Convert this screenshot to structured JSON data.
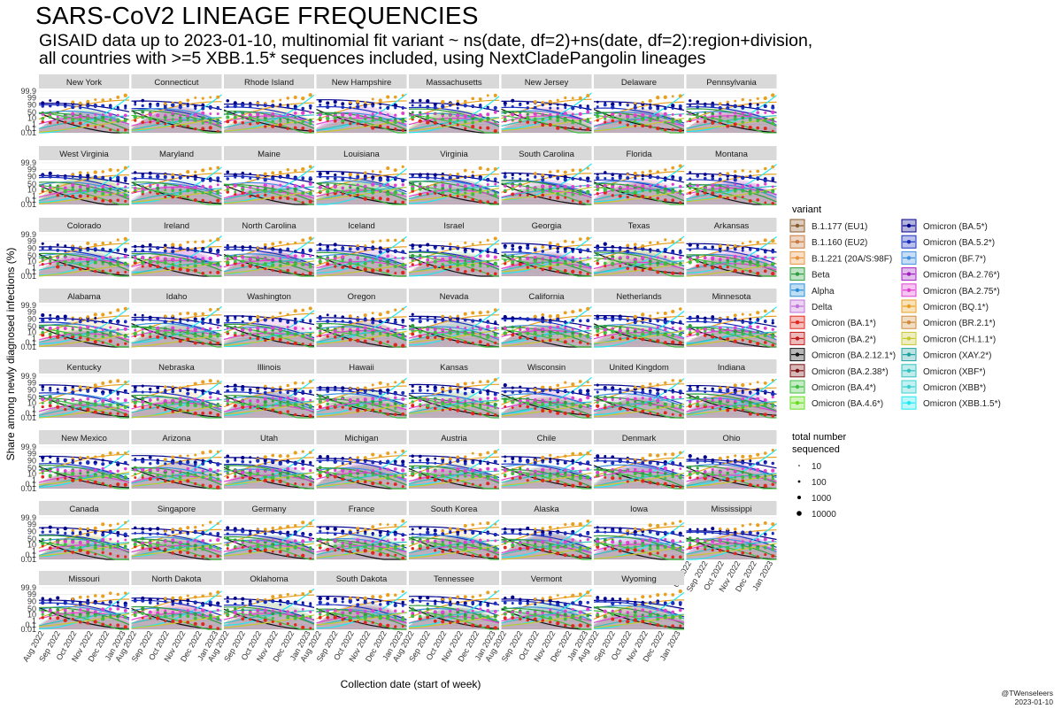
{
  "title": "SARS-CoV2 LINEAGE FREQUENCIES",
  "subtitle_line1": "GISAID data up to 2023-01-10, multinomial fit variant ~ ns(date, df=2)+ns(date, df=2):region+division,",
  "subtitle_line2": "all countries with >=5 XBB.1.5* sequences included, using NextCladePangolin lineages",
  "credit_handle": "@TWenseleers",
  "credit_date": "2023-01-10",
  "chart_data": {
    "type": "line",
    "ylabel": "Share among newly diagnosed infections (%)",
    "xlabel": "Collection date (start of week)",
    "y_scale": "logit",
    "y_ticks": [
      "0.01",
      "0.1",
      "1",
      "10",
      "50",
      "90",
      "99",
      "99.9"
    ],
    "x_ticks": [
      "Aug 2022",
      "Sep 2022",
      "Oct 2022",
      "Nov 2022",
      "Dec 2022",
      "Jan 2023"
    ],
    "panels": [
      "New York",
      "Connecticut",
      "Rhode Island",
      "New Hampshire",
      "Massachusetts",
      "New Jersey",
      "Delaware",
      "Pennsylvania",
      "West Virginia",
      "Maryland",
      "Maine",
      "Louisiana",
      "Virginia",
      "South Carolina",
      "Florida",
      "Montana",
      "Colorado",
      "Ireland",
      "North Carolina",
      "Iceland",
      "Israel",
      "Georgia",
      "Texas",
      "Arkansas",
      "Alabama",
      "Idaho",
      "Washington",
      "Oregon",
      "Nevada",
      "California",
      "Netherlands",
      "Minnesota",
      "Kentucky",
      "Nebraska",
      "Illinois",
      "Hawaii",
      "Kansas",
      "Wisconsin",
      "United Kingdom",
      "Indiana",
      "New Mexico",
      "Arizona",
      "Utah",
      "Michigan",
      "Austria",
      "Chile",
      "Denmark",
      "Ohio",
      "Canada",
      "Singapore",
      "Germany",
      "France",
      "South Korea",
      "Alaska",
      "Iowa",
      "Mississippi",
      "Missouri",
      "North Dakota",
      "Oklahoma",
      "South Dakota",
      "Tennessee",
      "Vermont",
      "Wyoming"
    ],
    "legend_title": "variant",
    "legend_position": "right",
    "series": [
      {
        "name": "B.1.177 (EU1)",
        "color": "#8b5a2b"
      },
      {
        "name": "B.1.160 (EU2)",
        "color": "#c8783a"
      },
      {
        "name": "B.1.221 (20A/S:98F)",
        "color": "#e8943f"
      },
      {
        "name": "Beta",
        "color": "#2e9e3e"
      },
      {
        "name": "Alpha",
        "color": "#2a8fd6"
      },
      {
        "name": "Delta",
        "color": "#c070d8"
      },
      {
        "name": "Omicron (BA.1*)",
        "color": "#e2261c"
      },
      {
        "name": "Omicron (BA.2*)",
        "color": "#c21818"
      },
      {
        "name": "Omicron (BA.2.12.1*)",
        "color": "#111111"
      },
      {
        "name": "Omicron (BA.2.38*)",
        "color": "#7a1010"
      },
      {
        "name": "Omicron (BA.4*)",
        "color": "#3fbf3f"
      },
      {
        "name": "Omicron (BA.4.6*)",
        "color": "#66dd22"
      },
      {
        "name": "Omicron (BA.5*)",
        "color": "#00008b"
      },
      {
        "name": "Omicron (BA.5.2*)",
        "color": "#1a2fbf"
      },
      {
        "name": "Omicron (BF.7*)",
        "color": "#3f8fe0"
      },
      {
        "name": "Omicron (BA.2.76*)",
        "color": "#a020c0"
      },
      {
        "name": "Omicron (BA.2.75*)",
        "color": "#e040d0"
      },
      {
        "name": "Omicron (BQ.1*)",
        "color": "#e8a020"
      },
      {
        "name": "Omicron (BR.2.1*)",
        "color": "#d08a3a"
      },
      {
        "name": "Omicron (CH.1.1*)",
        "color": "#c8c830"
      },
      {
        "name": "Omicron (XAY.2*)",
        "color": "#20a0a0"
      },
      {
        "name": "Omicron (XBF*)",
        "color": "#30c0c0"
      },
      {
        "name": "Omicron (XBB*)",
        "color": "#38d0d0"
      },
      {
        "name": "Omicron (XBB.1.5*)",
        "color": "#20e8f0"
      }
    ],
    "size_legend": {
      "title_line1": "total number",
      "title_line2": "sequenced",
      "values": [
        "10",
        "100",
        "1000",
        "10000"
      ]
    },
    "grid": true
  }
}
